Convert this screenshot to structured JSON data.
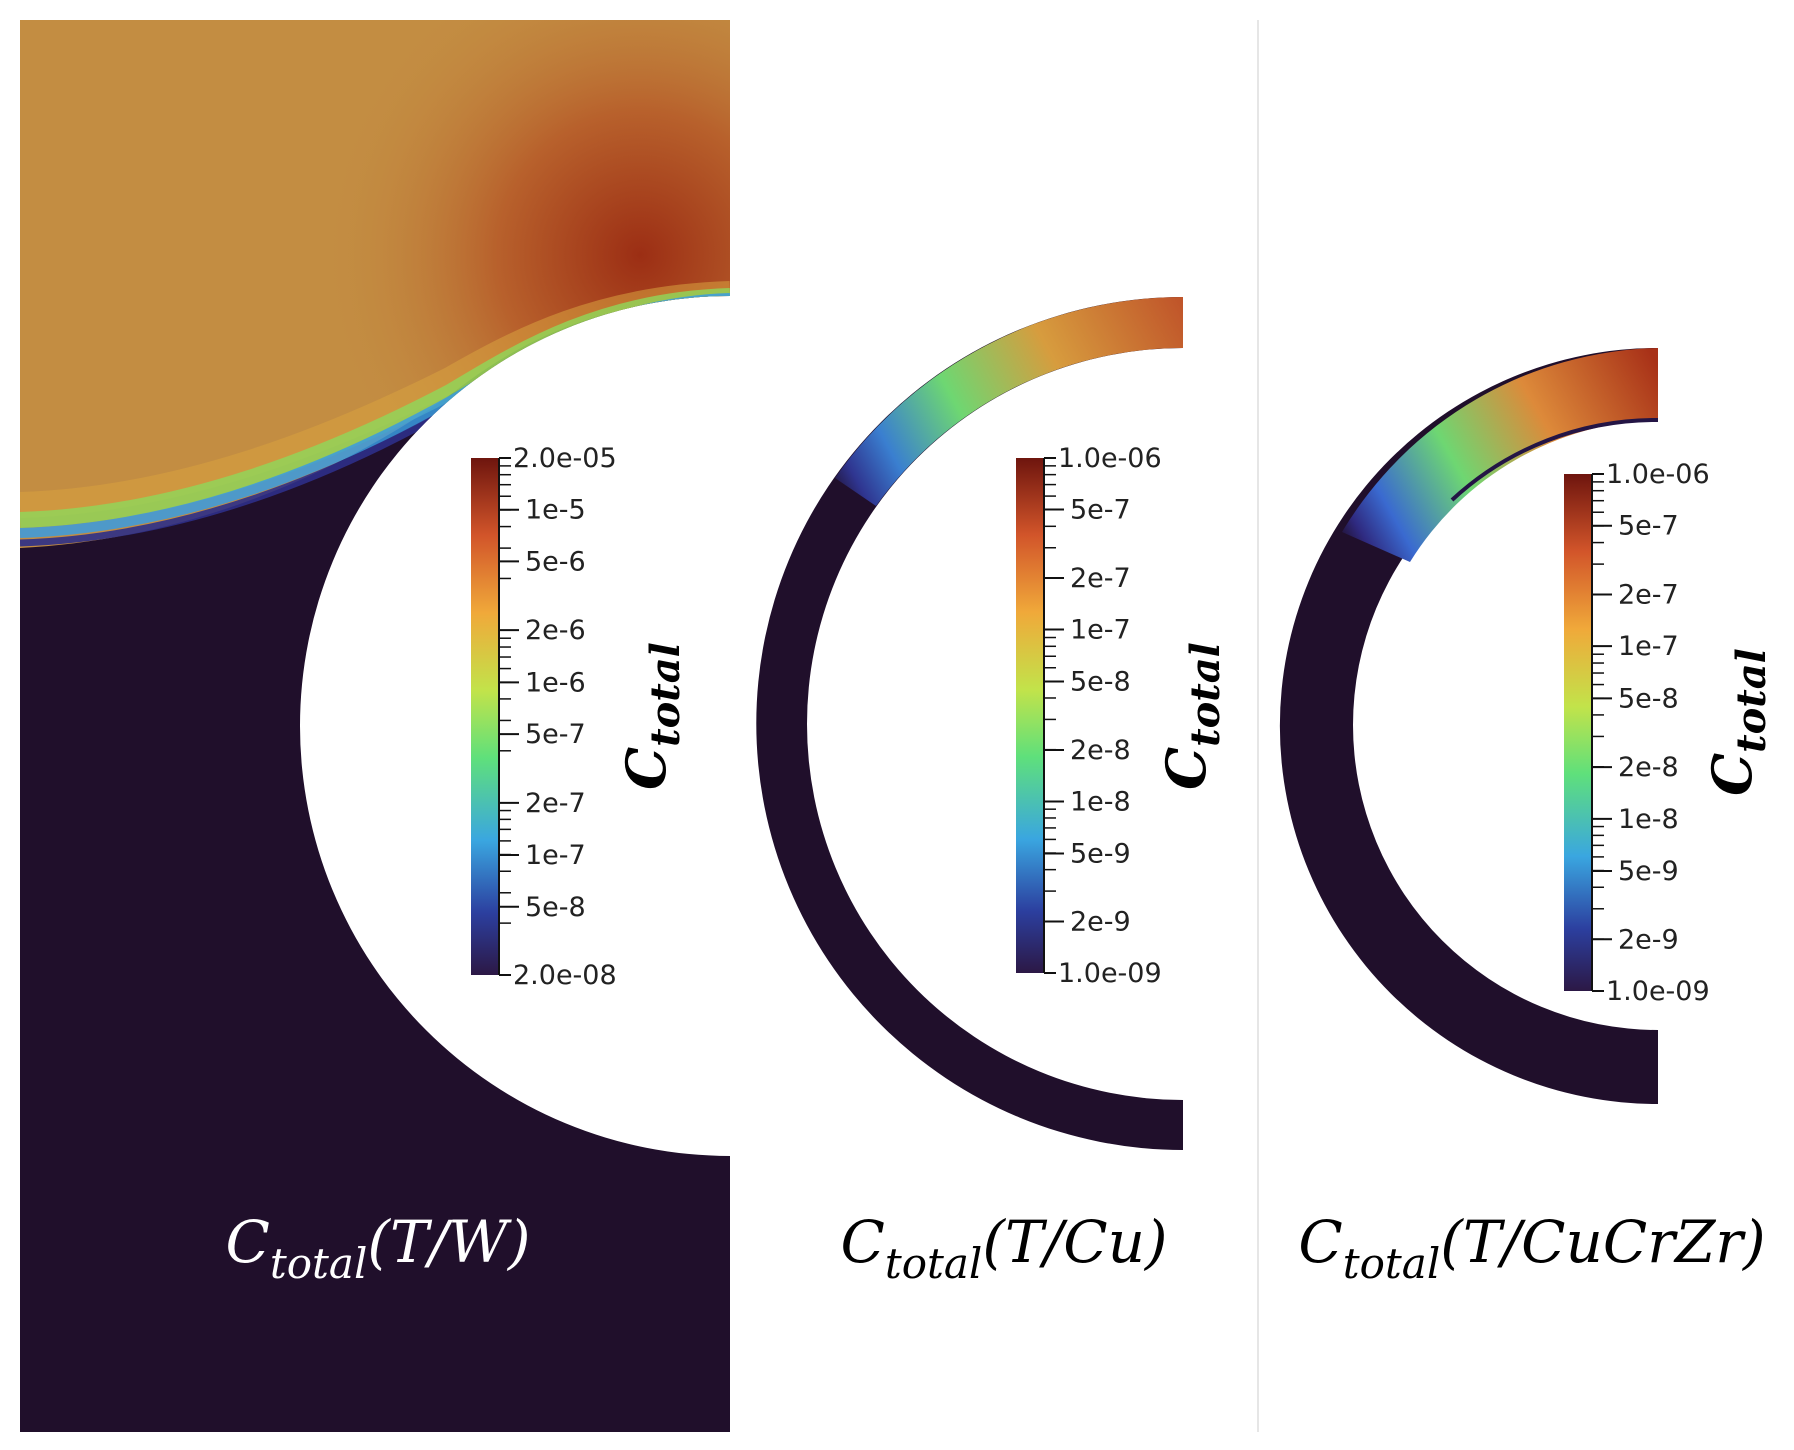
{
  "panels": [
    {
      "id": "tw",
      "caption": "C_total(T/W)",
      "caption_parts": {
        "base": "C",
        "sub": "total",
        "arg": "(T/W)"
      },
      "colorbar": {
        "axis_label": "C_total",
        "axis_label_parts": {
          "base": "C",
          "sub": "total"
        },
        "min_label": "2.0e-08",
        "max_label": "2.0e-05",
        "tick_labels": [
          "1e-5",
          "5e-6",
          "2e-6",
          "1e-6",
          "5e-7",
          "2e-7",
          "1e-7",
          "5e-8"
        ]
      }
    },
    {
      "id": "tcu",
      "caption": "C_total(T/Cu)",
      "caption_parts": {
        "base": "C",
        "sub": "total",
        "arg": "(T/Cu)"
      },
      "colorbar": {
        "axis_label": "C_total",
        "axis_label_parts": {
          "base": "C",
          "sub": "total"
        },
        "min_label": "1.0e-09",
        "max_label": "1.0e-06",
        "tick_labels": [
          "5e-7",
          "2e-7",
          "1e-7",
          "5e-8",
          "2e-8",
          "1e-8",
          "5e-9",
          "2e-9"
        ]
      }
    },
    {
      "id": "tcucrzr",
      "caption": "C_total(T/CuCrZr)",
      "caption_parts": {
        "base": "C",
        "sub": "total",
        "arg": "(T/CuCrZr)"
      },
      "colorbar": {
        "axis_label": "C_total",
        "axis_label_parts": {
          "base": "C",
          "sub": "total"
        },
        "min_label": "1.0e-09",
        "max_label": "1.0e-06",
        "tick_labels": [
          "5e-7",
          "2e-7",
          "1e-7",
          "5e-8",
          "2e-8",
          "1e-8",
          "5e-9",
          "2e-9"
        ]
      }
    }
  ],
  "colors": {
    "background": "#ffffff",
    "dark_region": "#200f2b",
    "bulk_high": "#c38d42",
    "peak": "#9c2e14",
    "colormap": [
      "#2c1845",
      "#2c3f9f",
      "#3aa6e0",
      "#5fe07b",
      "#c2e34a",
      "#f0a93a",
      "#d2552a",
      "#7a1810"
    ]
  }
}
